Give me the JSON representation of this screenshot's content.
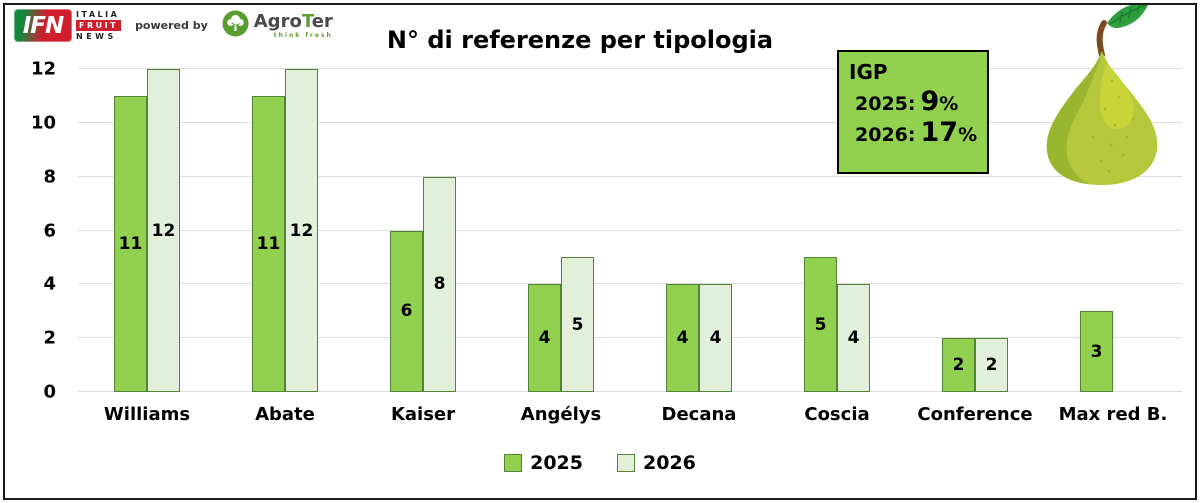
{
  "header": {
    "ifn_logo": {
      "abbr": "IFN",
      "line1": "ITALIA",
      "line2": "FRUIT",
      "line3": "NEWS"
    },
    "powered_by": "powered by",
    "agroter": {
      "agro": "Agro",
      "t": "T",
      "er": "er",
      "tagline": "think fresh"
    }
  },
  "chart_data": {
    "type": "bar",
    "title": "N° di referenze per tipologia",
    "categories": [
      "Williams",
      "Abate",
      "Kaiser",
      "Angélys",
      "Decana",
      "Coscia",
      "Conference",
      "Max red B."
    ],
    "series": [
      {
        "name": "2025",
        "color": "#92D050",
        "border": "#538135",
        "values": [
          11,
          11,
          6,
          4,
          4,
          5,
          2,
          3
        ]
      },
      {
        "name": "2026",
        "color": "#E2EFDA",
        "border": "#538135",
        "values": [
          12,
          12,
          8,
          5,
          4,
          4,
          2,
          null
        ]
      }
    ],
    "xlabel": "",
    "ylabel": "",
    "ylim": [
      0,
      12
    ],
    "yticks": [
      0,
      2,
      4,
      6,
      8,
      10,
      12
    ],
    "grid": true,
    "legend_position": "bottom",
    "data_labels": "center"
  },
  "igp_box": {
    "title": "IGP",
    "rows": [
      {
        "label": "2025:",
        "value": "9",
        "suffix": "%"
      },
      {
        "label": "2026:",
        "value": "17",
        "suffix": "%"
      }
    ],
    "background": "#92D050"
  },
  "colors": {
    "grid": "#DCDCDC",
    "text": "#000000",
    "bar_border": "#538135",
    "igp_green": "#92D050",
    "agroter_green": "#5a9e32",
    "ifn_red": "#cf1f2e",
    "ifn_green": "#128a3e"
  }
}
